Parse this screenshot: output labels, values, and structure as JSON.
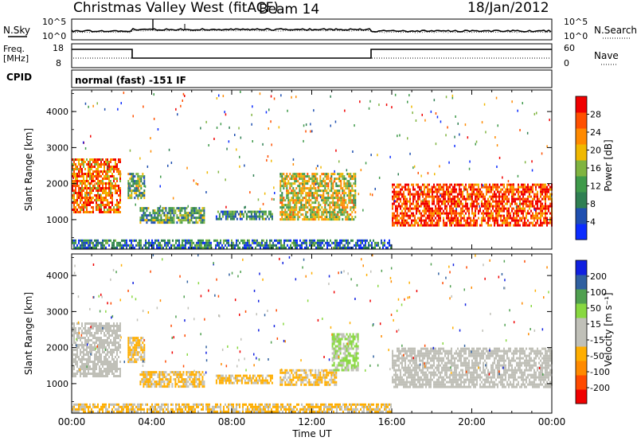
{
  "header": {
    "title": "Christmas Valley West (fitACF)",
    "beam": "Beam 14",
    "date": "18/Jan/2012"
  },
  "panel_noise": {
    "left_label": "N.Sky",
    "left_ticks": [
      "10^5",
      "10^0"
    ],
    "right_ticks": [
      "10^5",
      "10^0"
    ],
    "right_label": "N.Search"
  },
  "panel_freq": {
    "left_label_top": "Freq.",
    "left_label_bottom": "[MHz]",
    "left_ticks": [
      "18",
      "8"
    ],
    "right_ticks": [
      "60",
      "0"
    ],
    "right_label": "Nave"
  },
  "panel_cpid": {
    "left_label": "CPID",
    "mode_text": "normal (fast) -151 IF"
  },
  "colors": {
    "power_scale": [
      "#0b2cff",
      "#1f4fb0",
      "#2f7f52",
      "#3f9a4a",
      "#80b440",
      "#f0b800",
      "#ff8a00",
      "#ff5000",
      "#f00000"
    ],
    "velocity_scale": [
      "#f00000",
      "#ff4a00",
      "#ff8a00",
      "#ffae00",
      "#c0c0b8",
      "#c0c0b8",
      "#88d840",
      "#50a050",
      "#3060a0",
      "#1020e0"
    ]
  },
  "chart_data": [
    {
      "type": "heatmap",
      "name": "power",
      "xlabel": "",
      "ylabel": "Slant Range [km]",
      "xlim": [
        0,
        24
      ],
      "ylim": [
        180,
        4600
      ],
      "yticks": [
        "1000",
        "2000",
        "3000",
        "4000"
      ],
      "colorbar": {
        "label": "Power [dB]",
        "ticks": [
          "4",
          "8",
          "12",
          "16",
          "20",
          "24",
          "28"
        ],
        "range": [
          0,
          32
        ]
      },
      "features": [
        {
          "t0": 0.0,
          "t1": 2.4,
          "r0": 1200,
          "r1": 2700,
          "value": 24
        },
        {
          "t0": 2.8,
          "t1": 3.6,
          "r0": 1600,
          "r1": 2300,
          "value": 14
        },
        {
          "t0": 3.4,
          "t1": 6.6,
          "r0": 900,
          "r1": 1350,
          "value": 12
        },
        {
          "t0": 7.2,
          "t1": 10.0,
          "r0": 1050,
          "r1": 1250,
          "value": 10
        },
        {
          "t0": 10.4,
          "t1": 14.2,
          "r0": 1000,
          "r1": 2300,
          "value": 18
        },
        {
          "t0": 16.0,
          "t1": 24.0,
          "r0": 850,
          "r1": 2000,
          "value": 28
        },
        {
          "t0": 0.0,
          "t1": 16.0,
          "r0": 200,
          "r1": 450,
          "value": 8
        }
      ]
    },
    {
      "type": "heatmap",
      "name": "velocity",
      "xlabel": "Time UT",
      "ylabel": "Slant Range [km]",
      "xlim": [
        0,
        24
      ],
      "ylim": [
        180,
        4600
      ],
      "xticks": [
        "00:00",
        "04:00",
        "08:00",
        "12:00",
        "16:00",
        "20:00",
        "00:00"
      ],
      "yticks": [
        "1000",
        "2000",
        "3000",
        "4000"
      ],
      "colorbar": {
        "label": "Velocity [m s⁻¹]",
        "ticks": [
          "-200",
          "-100",
          "-50",
          "-15",
          "15",
          "50",
          "100",
          "200"
        ],
        "range": [
          -250,
          250
        ]
      },
      "features": [
        {
          "t0": 0.0,
          "t1": 2.4,
          "r0": 1200,
          "r1": 2700,
          "value": 0
        },
        {
          "t0": 2.8,
          "t1": 3.6,
          "r0": 1600,
          "r1": 2300,
          "value": -60
        },
        {
          "t0": 3.4,
          "t1": 6.6,
          "r0": 900,
          "r1": 1350,
          "value": -60
        },
        {
          "t0": 7.2,
          "t1": 10.0,
          "r0": 1050,
          "r1": 1250,
          "value": -60
        },
        {
          "t0": 10.4,
          "t1": 13.2,
          "r0": 1000,
          "r1": 1400,
          "value": -60
        },
        {
          "t0": 13.0,
          "t1": 14.3,
          "r0": 1400,
          "r1": 2400,
          "value": 60
        },
        {
          "t0": 16.0,
          "t1": 24.0,
          "r0": 900,
          "r1": 2000,
          "value": 0
        },
        {
          "t0": 0.0,
          "t1": 16.0,
          "r0": 200,
          "r1": 450,
          "value": -60
        }
      ]
    }
  ]
}
